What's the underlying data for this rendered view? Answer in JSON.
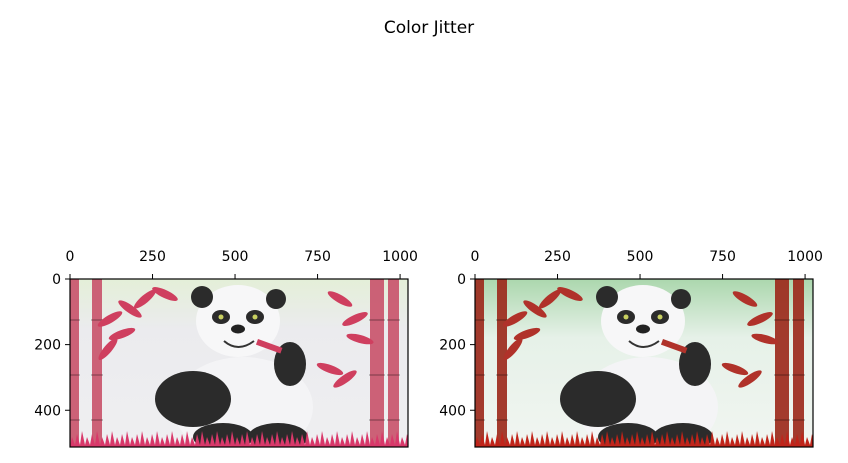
{
  "figure": {
    "suptitle": "Color Jitter"
  },
  "chart_data": [
    {
      "type": "image",
      "panel": "left",
      "content": "pink-tinted panda among bamboo",
      "xlim": [
        0,
        1024
      ],
      "ylim": [
        512,
        0
      ],
      "xticks": [
        0,
        250,
        500,
        750,
        1000
      ],
      "yticks": [
        0,
        200,
        400
      ],
      "xaxis_position": "top",
      "grid": false,
      "palette": {
        "bamboo": "#c9556d",
        "leaves": "#cf3f5f",
        "bg_top": "#e8f0dc",
        "bg": "#ebebef",
        "grass": "#d8386a"
      }
    },
    {
      "type": "image",
      "panel": "right",
      "content": "red-tinted panda among bamboo",
      "xlim": [
        0,
        1024
      ],
      "ylim": [
        512,
        0
      ],
      "xticks": [
        0,
        250,
        500,
        750,
        1000
      ],
      "yticks": [
        0,
        200,
        400
      ],
      "xaxis_position": "top",
      "grid": false,
      "palette": {
        "bamboo": "#9c2a1c",
        "leaves": "#b0322a",
        "bg_top": "#b6dcb8",
        "bg": "#eef3ef",
        "grass": "#c0241a"
      }
    }
  ]
}
